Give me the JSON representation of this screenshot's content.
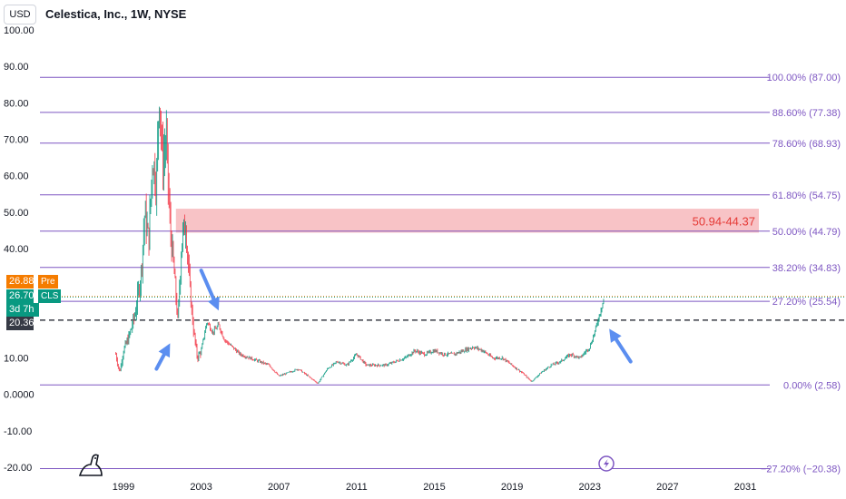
{
  "header": {
    "currency": "USD",
    "title": "Celestica, Inc., 1W, NYSE"
  },
  "price_badges": {
    "pre": {
      "value": "26.88",
      "label": "Pre",
      "color": "#f57c00"
    },
    "cls": {
      "value": "26.70",
      "label": "CLS",
      "color": "#089981"
    },
    "countdown": "3d 7h",
    "level": {
      "value": "20.36",
      "color": "#363a45"
    }
  },
  "zone_label": "50.94-44.37",
  "colors": {
    "fib_line": "#7e57c2",
    "zone_fill": "#f7b8bc",
    "zone_text": "#e53935",
    "up": "#089981",
    "down": "#f23645",
    "arrow": "#5b8ef0",
    "dash": "#131722"
  },
  "chart_data": {
    "type": "line",
    "title": "Celestica, Inc., 1W, NYSE",
    "xlabel": "",
    "ylabel": "",
    "ylim": [
      -20.38,
      100
    ],
    "xlim": [
      1996.4,
      2032.6
    ],
    "x_ticks": [
      1999,
      2003,
      2007,
      2011,
      2015,
      2019,
      2023,
      2027,
      2031
    ],
    "y_ticks": [
      {
        "v": 100,
        "label": "100.00"
      },
      {
        "v": 90,
        "label": "90.00"
      },
      {
        "v": 80,
        "label": "80.00"
      },
      {
        "v": 70,
        "label": "70.00"
      },
      {
        "v": 60,
        "label": "60.00"
      },
      {
        "v": 50,
        "label": "50.00"
      },
      {
        "v": 40,
        "label": "40.00"
      },
      {
        "v": 10,
        "label": "10.00"
      },
      {
        "v": 0,
        "label": "0.0000"
      },
      {
        "v": -10,
        "label": "-10.00"
      },
      {
        "v": -20,
        "label": "-20.00"
      }
    ],
    "fib_levels": [
      {
        "value": 87.0,
        "label": "100.00% (87.00)"
      },
      {
        "value": 77.38,
        "label": "88.60% (77.38)"
      },
      {
        "value": 68.93,
        "label": "78.60% (68.93)"
      },
      {
        "value": 54.75,
        "label": "61.80% (54.75)"
      },
      {
        "value": 44.79,
        "label": "50.00% (44.79)"
      },
      {
        "value": 34.83,
        "label": "38.20% (34.83)"
      },
      {
        "value": 25.54,
        "label": "27.20% (25.54)"
      },
      {
        "value": 2.58,
        "label": "0.00% (2.58)"
      },
      {
        "value": -20.38,
        "label": "−27.20% (−20.38)"
      }
    ],
    "zone": {
      "top": 50.94,
      "bottom": 44.37,
      "x_start": 2001.7
    },
    "horizontal_line": 20.36,
    "price_series": [
      [
        1998.6,
        11
      ],
      [
        1998.8,
        6
      ],
      [
        1999.0,
        12
      ],
      [
        1999.3,
        16
      ],
      [
        1999.6,
        22
      ],
      [
        1999.9,
        33
      ],
      [
        2000.1,
        50
      ],
      [
        2000.3,
        42
      ],
      [
        2000.5,
        65
      ],
      [
        2000.7,
        58
      ],
      [
        2000.85,
        84
      ],
      [
        2001.0,
        63
      ],
      [
        2001.2,
        70
      ],
      [
        2001.4,
        46
      ],
      [
        2001.6,
        34
      ],
      [
        2001.8,
        20
      ],
      [
        2002.0,
        42
      ],
      [
        2002.2,
        47
      ],
      [
        2002.4,
        30
      ],
      [
        2002.6,
        18
      ],
      [
        2002.8,
        10
      ],
      [
        2003.0,
        12
      ],
      [
        2003.3,
        20
      ],
      [
        2003.6,
        17
      ],
      [
        2003.9,
        19
      ],
      [
        2004.2,
        15
      ],
      [
        2004.6,
        13
      ],
      [
        2005.0,
        11
      ],
      [
        2005.5,
        10
      ],
      [
        2006.0,
        9
      ],
      [
        2006.5,
        8
      ],
      [
        2007.0,
        5
      ],
      [
        2007.5,
        6
      ],
      [
        2008.0,
        7
      ],
      [
        2008.5,
        5
      ],
      [
        2009.0,
        3
      ],
      [
        2009.5,
        7
      ],
      [
        2010.0,
        9
      ],
      [
        2010.5,
        8
      ],
      [
        2011.0,
        11
      ],
      [
        2011.5,
        8
      ],
      [
        2012.0,
        8
      ],
      [
        2012.5,
        8
      ],
      [
        2013.0,
        9
      ],
      [
        2013.5,
        10
      ],
      [
        2014.0,
        12
      ],
      [
        2014.5,
        11
      ],
      [
        2015.0,
        12
      ],
      [
        2015.5,
        11
      ],
      [
        2016.0,
        11
      ],
      [
        2016.5,
        12
      ],
      [
        2017.0,
        13
      ],
      [
        2017.5,
        12
      ],
      [
        2018.0,
        10
      ],
      [
        2018.5,
        10
      ],
      [
        2019.0,
        8
      ],
      [
        2019.5,
        6
      ],
      [
        2020.0,
        3.5
      ],
      [
        2020.5,
        6
      ],
      [
        2021.0,
        8
      ],
      [
        2021.5,
        9
      ],
      [
        2022.0,
        11
      ],
      [
        2022.5,
        10
      ],
      [
        2023.0,
        13
      ],
      [
        2023.3,
        18
      ],
      [
        2023.6,
        24
      ],
      [
        2023.75,
        26.7
      ]
    ],
    "annotations": [
      {
        "type": "arrow",
        "tail": [
          2000.7,
          7
        ],
        "head": [
          2001.4,
          14
        ]
      },
      {
        "type": "arrow",
        "tail": [
          2003.0,
          34
        ],
        "head": [
          2003.9,
          23
        ]
      },
      {
        "type": "arrow",
        "tail": [
          2025.1,
          9
        ],
        "head": [
          2024.0,
          18
        ]
      }
    ]
  }
}
